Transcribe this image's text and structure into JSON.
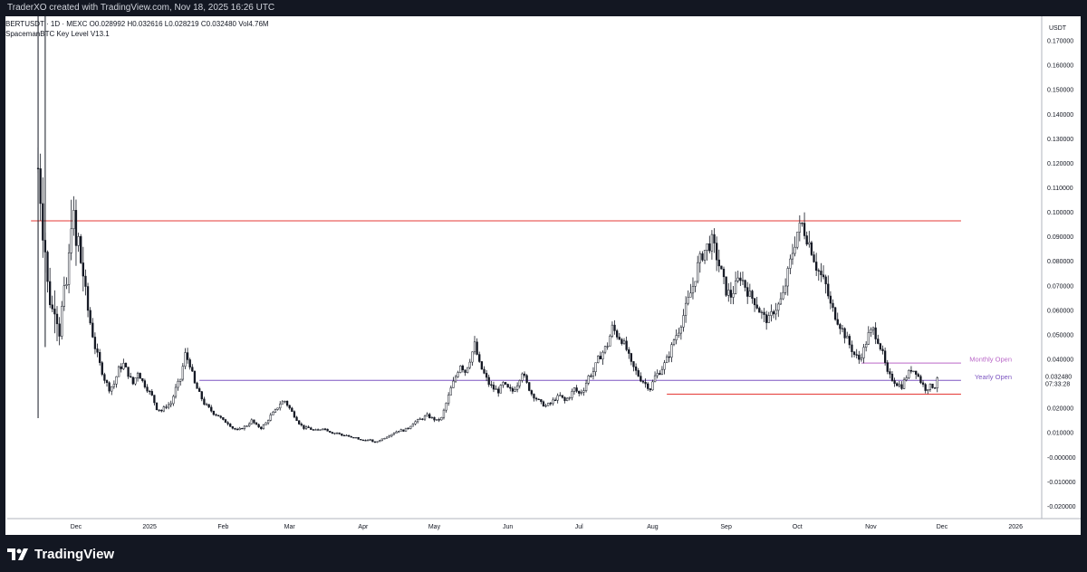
{
  "header": {
    "caption": "TraderXO created with TradingView.com, Nov 18, 2025 16:26 UTC"
  },
  "legend": {
    "symbol_line": "BERTUSDT · 1D · MEXC",
    "ohlc": "O0.028992  H0.032616  L0.028219  C0.032480  Vol4.76M",
    "indicator": "SpacemanBTC Key Level V13.1"
  },
  "price_axis": {
    "currency": "USDT",
    "last_price": "0.032480",
    "countdown": "07:33:28"
  },
  "footer": {
    "brand": "TradingView"
  },
  "colors": {
    "background": "#ffffff",
    "frame": "#131722",
    "candle": "#131722",
    "key_level_red": "#e53935",
    "yearly_open": "#7e57c2",
    "monthly_open": "#ba68c8"
  },
  "chart_data": {
    "type": "candlestick",
    "symbol": "BERTUSDT",
    "exchange": "MEXC",
    "interval": "1D",
    "ylim": [
      -0.025,
      0.18
    ],
    "y_ticks": [
      "0.170000",
      "0.160000",
      "0.150000",
      "0.140000",
      "0.130000",
      "0.120000",
      "0.110000",
      "0.100000",
      "0.090000",
      "0.080000",
      "0.070000",
      "0.060000",
      "0.050000",
      "0.040000",
      "0.030000",
      "0.020000",
      "0.010000",
      "-0.000000",
      "-0.010000",
      "-0.020000"
    ],
    "y_tick_values": [
      0.17,
      0.16,
      0.15,
      0.14,
      0.13,
      0.12,
      0.11,
      0.1,
      0.09,
      0.08,
      0.07,
      0.06,
      0.05,
      0.04,
      0.03,
      0.02,
      0.01,
      0.0,
      -0.01,
      -0.02
    ],
    "x_labels": [
      "Dec",
      "2025",
      "Feb",
      "Mar",
      "Apr",
      "May",
      "Jun",
      "Jul",
      "Aug",
      "Sep",
      "Oct",
      "Nov",
      "Dec",
      "2026"
    ],
    "x_label_days": [
      10,
      41,
      72,
      100,
      131,
      161,
      192,
      222,
      253,
      284,
      314,
      345,
      375,
      406
    ],
    "x_range_days": [
      -19,
      417
    ],
    "key_levels": [
      {
        "value": 0.0965,
        "start_day": -9,
        "end_day": 383,
        "color": "#e53935"
      },
      {
        "value": 0.0314,
        "start_day": 62,
        "end_day": 383,
        "color": "#7e57c2"
      },
      {
        "value": 0.0385,
        "start_day": 341,
        "end_day": 383,
        "color": "#ba68c8"
      },
      {
        "value": 0.0258,
        "start_day": 259,
        "end_day": 383,
        "color": "#e53935"
      }
    ],
    "level_labels": [
      {
        "text": "Monthly Open",
        "value": 0.0385
      },
      {
        "text": "Yearly Open",
        "value": 0.0314
      }
    ],
    "close_path": [
      [
        -6,
        0.118
      ],
      [
        -5,
        0.108
      ],
      [
        -4,
        0.095
      ],
      [
        -3,
        0.085
      ],
      [
        -2,
        0.07
      ],
      [
        -1,
        0.065
      ],
      [
        0,
        0.06
      ],
      [
        1,
        0.063
      ],
      [
        2,
        0.058
      ],
      [
        3,
        0.052
      ],
      [
        4,
        0.06
      ],
      [
        5,
        0.065
      ],
      [
        6,
        0.07
      ],
      [
        7,
        0.08
      ],
      [
        8,
        0.1
      ],
      [
        9,
        0.095
      ],
      [
        10,
        0.085
      ],
      [
        11,
        0.088
      ],
      [
        12,
        0.08
      ],
      [
        13,
        0.075
      ],
      [
        14,
        0.065
      ],
      [
        16,
        0.055
      ],
      [
        18,
        0.045
      ],
      [
        20,
        0.038
      ],
      [
        22,
        0.032
      ],
      [
        24,
        0.028
      ],
      [
        26,
        0.03
      ],
      [
        28,
        0.036
      ],
      [
        30,
        0.038
      ],
      [
        32,
        0.034
      ],
      [
        34,
        0.03
      ],
      [
        36,
        0.035
      ],
      [
        38,
        0.031
      ],
      [
        40,
        0.028
      ],
      [
        42,
        0.025
      ],
      [
        44,
        0.02
      ],
      [
        46,
        0.019
      ],
      [
        48,
        0.021
      ],
      [
        50,
        0.022
      ],
      [
        52,
        0.028
      ],
      [
        54,
        0.032
      ],
      [
        56,
        0.042
      ],
      [
        58,
        0.038
      ],
      [
        60,
        0.03
      ],
      [
        62,
        0.026
      ],
      [
        64,
        0.022
      ],
      [
        66,
        0.02
      ],
      [
        68,
        0.018
      ],
      [
        70,
        0.017
      ],
      [
        72,
        0.015
      ],
      [
        74,
        0.014
      ],
      [
        76,
        0.012
      ],
      [
        78,
        0.011
      ],
      [
        80,
        0.012
      ],
      [
        82,
        0.013
      ],
      [
        84,
        0.015
      ],
      [
        86,
        0.013
      ],
      [
        88,
        0.012
      ],
      [
        90,
        0.014
      ],
      [
        92,
        0.017
      ],
      [
        94,
        0.019
      ],
      [
        96,
        0.022
      ],
      [
        98,
        0.023
      ],
      [
        100,
        0.02
      ],
      [
        102,
        0.017
      ],
      [
        104,
        0.014
      ],
      [
        106,
        0.012
      ],
      [
        108,
        0.012
      ],
      [
        110,
        0.011
      ],
      [
        112,
        0.011
      ],
      [
        114,
        0.012
      ],
      [
        116,
        0.011
      ],
      [
        118,
        0.01
      ],
      [
        120,
        0.01
      ],
      [
        122,
        0.009
      ],
      [
        124,
        0.009
      ],
      [
        126,
        0.008
      ],
      [
        128,
        0.008
      ],
      [
        130,
        0.007
      ],
      [
        132,
        0.007
      ],
      [
        134,
        0.007
      ],
      [
        136,
        0.006
      ],
      [
        138,
        0.007
      ],
      [
        140,
        0.008
      ],
      [
        142,
        0.009
      ],
      [
        144,
        0.01
      ],
      [
        146,
        0.011
      ],
      [
        148,
        0.011
      ],
      [
        150,
        0.012
      ],
      [
        152,
        0.014
      ],
      [
        154,
        0.015
      ],
      [
        156,
        0.016
      ],
      [
        158,
        0.017
      ],
      [
        160,
        0.016
      ],
      [
        162,
        0.015
      ],
      [
        164,
        0.016
      ],
      [
        166,
        0.022
      ],
      [
        168,
        0.028
      ],
      [
        170,
        0.033
      ],
      [
        172,
        0.038
      ],
      [
        174,
        0.035
      ],
      [
        176,
        0.04
      ],
      [
        178,
        0.046
      ],
      [
        180,
        0.038
      ],
      [
        182,
        0.034
      ],
      [
        184,
        0.03
      ],
      [
        186,
        0.028
      ],
      [
        188,
        0.027
      ],
      [
        190,
        0.03
      ],
      [
        192,
        0.028
      ],
      [
        194,
        0.027
      ],
      [
        196,
        0.03
      ],
      [
        198,
        0.035
      ],
      [
        200,
        0.03
      ],
      [
        202,
        0.026
      ],
      [
        204,
        0.024
      ],
      [
        206,
        0.022
      ],
      [
        208,
        0.021
      ],
      [
        210,
        0.022
      ],
      [
        212,
        0.024
      ],
      [
        214,
        0.025
      ],
      [
        216,
        0.023
      ],
      [
        218,
        0.025
      ],
      [
        220,
        0.028
      ],
      [
        222,
        0.026
      ],
      [
        224,
        0.028
      ],
      [
        226,
        0.033
      ],
      [
        228,
        0.035
      ],
      [
        230,
        0.04
      ],
      [
        232,
        0.043
      ],
      [
        234,
        0.046
      ],
      [
        236,
        0.053
      ],
      [
        238,
        0.05
      ],
      [
        240,
        0.048
      ],
      [
        242,
        0.044
      ],
      [
        244,
        0.038
      ],
      [
        246,
        0.035
      ],
      [
        248,
        0.032
      ],
      [
        250,
        0.03
      ],
      [
        252,
        0.028
      ],
      [
        254,
        0.033
      ],
      [
        256,
        0.035
      ],
      [
        258,
        0.038
      ],
      [
        260,
        0.042
      ],
      [
        262,
        0.048
      ],
      [
        264,
        0.052
      ],
      [
        266,
        0.058
      ],
      [
        268,
        0.064
      ],
      [
        270,
        0.07
      ],
      [
        272,
        0.078
      ],
      [
        274,
        0.083
      ],
      [
        276,
        0.086
      ],
      [
        278,
        0.088
      ],
      [
        280,
        0.082
      ],
      [
        282,
        0.075
      ],
      [
        284,
        0.068
      ],
      [
        286,
        0.066
      ],
      [
        288,
        0.07
      ],
      [
        290,
        0.074
      ],
      [
        292,
        0.07
      ],
      [
        294,
        0.066
      ],
      [
        296,
        0.064
      ],
      [
        298,
        0.06
      ],
      [
        300,
        0.057
      ],
      [
        302,
        0.056
      ],
      [
        304,
        0.06
      ],
      [
        306,
        0.062
      ],
      [
        308,
        0.066
      ],
      [
        310,
        0.075
      ],
      [
        312,
        0.084
      ],
      [
        314,
        0.092
      ],
      [
        316,
        0.095
      ],
      [
        318,
        0.09
      ],
      [
        320,
        0.085
      ],
      [
        322,
        0.078
      ],
      [
        324,
        0.074
      ],
      [
        326,
        0.07
      ],
      [
        328,
        0.062
      ],
      [
        330,
        0.058
      ],
      [
        332,
        0.054
      ],
      [
        334,
        0.05
      ],
      [
        336,
        0.046
      ],
      [
        338,
        0.042
      ],
      [
        340,
        0.04
      ],
      [
        342,
        0.044
      ],
      [
        344,
        0.05
      ],
      [
        346,
        0.052
      ],
      [
        348,
        0.048
      ],
      [
        350,
        0.042
      ],
      [
        352,
        0.034
      ],
      [
        354,
        0.032
      ],
      [
        356,
        0.03
      ],
      [
        358,
        0.029
      ],
      [
        360,
        0.033
      ],
      [
        362,
        0.036
      ],
      [
        364,
        0.035
      ],
      [
        366,
        0.031
      ],
      [
        368,
        0.028
      ],
      [
        370,
        0.029
      ],
      [
        372,
        0.029
      ],
      [
        373,
        0.0325
      ]
    ]
  }
}
